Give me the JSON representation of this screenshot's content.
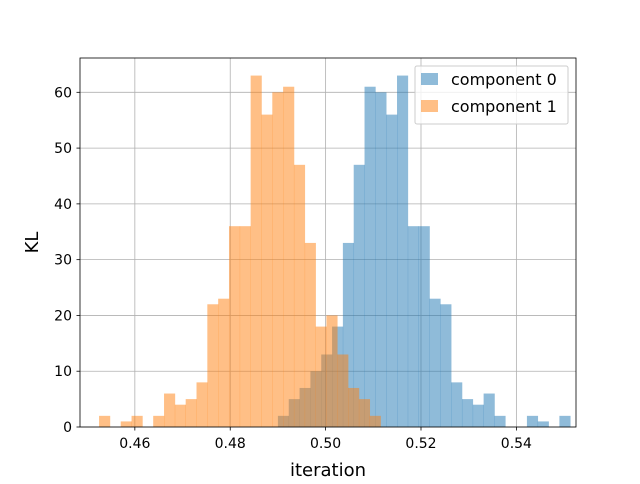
{
  "chart_data": {
    "type": "bar",
    "subtype": "overlapping-histogram",
    "title": "",
    "xlabel": "iteration",
    "ylabel": "KL",
    "xlim": [
      0.4485,
      0.5525
    ],
    "ylim": [
      0,
      66.15
    ],
    "grid": true,
    "legend_position": "top-right",
    "x_ticks": [
      0.46,
      0.48,
      0.5,
      0.52,
      0.54
    ],
    "x_tick_labels": [
      "0.46",
      "0.48",
      "0.50",
      "0.52",
      "0.54"
    ],
    "y_ticks": [
      0,
      10,
      20,
      30,
      40,
      50,
      60
    ],
    "y_tick_labels": [
      "0",
      "10",
      "20",
      "30",
      "40",
      "50",
      "60"
    ],
    "series": [
      {
        "name": "component 0",
        "color": "#1f77b4",
        "opacity": 0.5,
        "bin_start": 0.49,
        "bin_width": 0.00227,
        "counts": [
          2,
          5,
          7,
          10,
          13,
          18,
          33,
          47,
          61,
          60,
          56,
          63,
          36,
          36,
          23,
          22,
          8,
          5,
          4,
          6,
          2,
          0,
          0,
          2,
          1,
          0,
          2
        ]
      },
      {
        "name": "component 1",
        "color": "#ff7f0e",
        "opacity": 0.5,
        "bin_start": 0.4525,
        "bin_width": 0.00227,
        "counts": [
          2,
          0,
          1,
          2,
          0,
          2,
          6,
          4,
          5,
          8,
          22,
          23,
          36,
          36,
          63,
          56,
          60,
          61,
          47,
          33,
          18,
          20,
          13,
          7,
          5,
          2
        ]
      }
    ]
  }
}
